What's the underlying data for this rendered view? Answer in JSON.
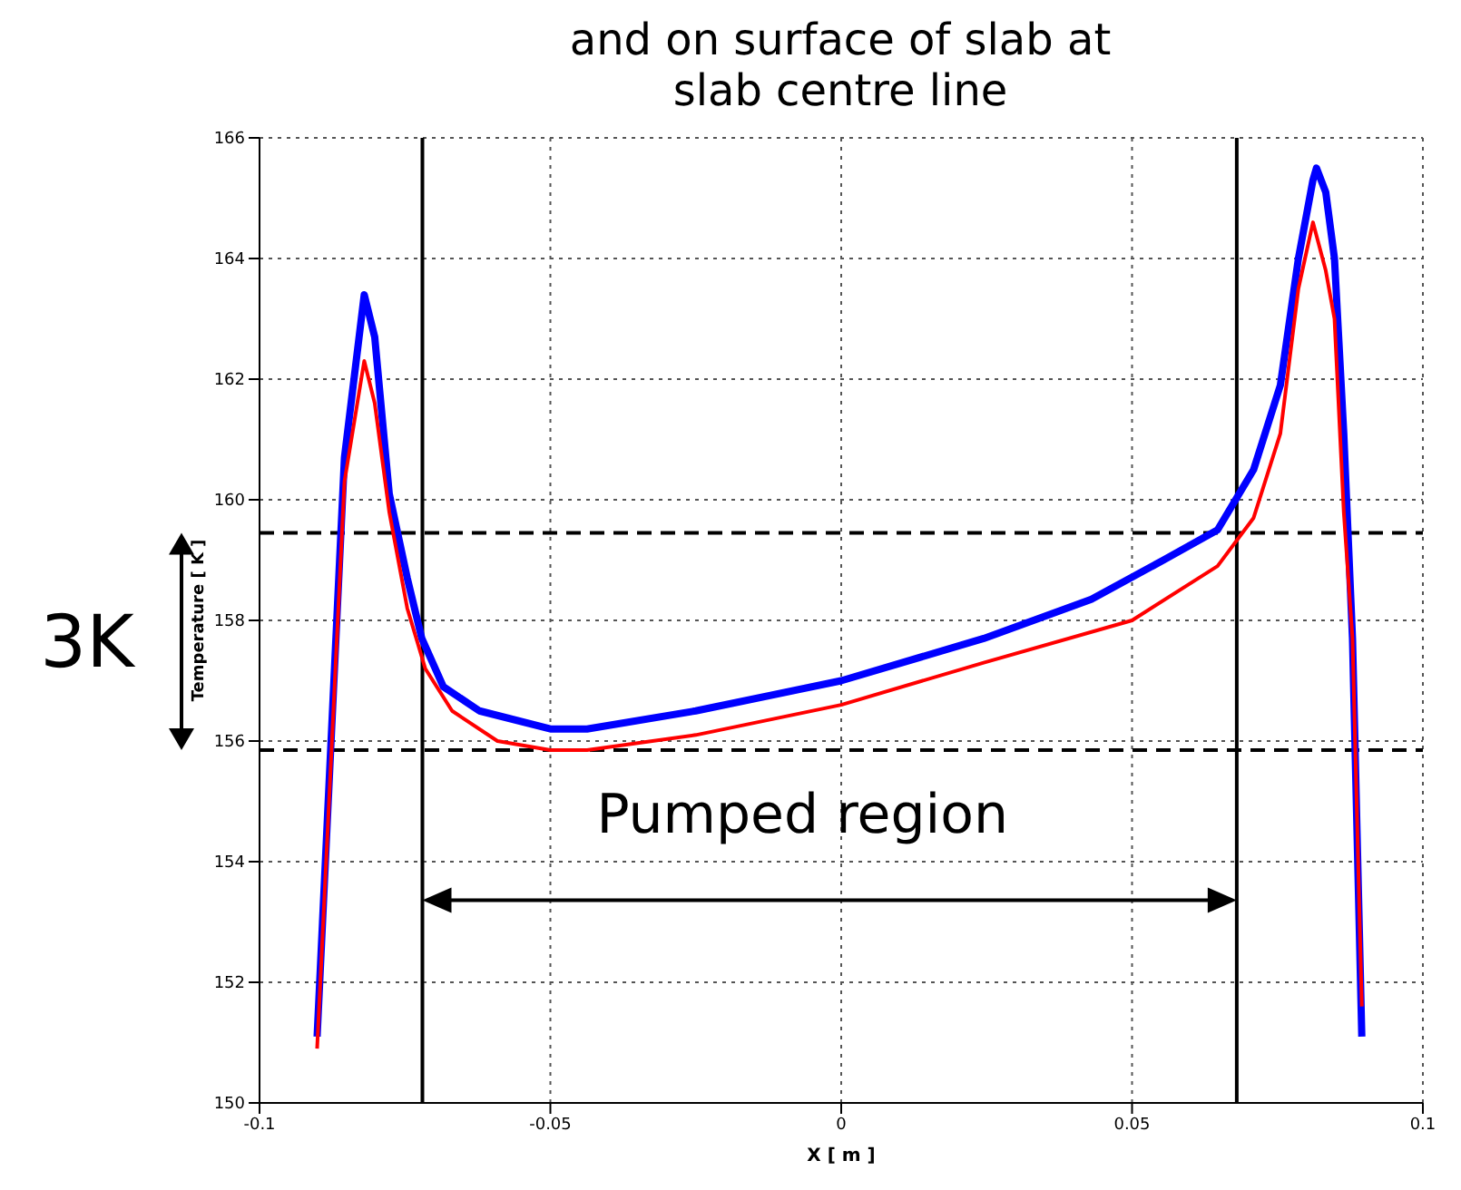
{
  "chart_data": {
    "type": "line",
    "title": "and on surface of slab at slab centre line",
    "xlabel": "X [ m ]",
    "ylabel": "Temperature [ K ]",
    "xlim": [
      -0.1,
      0.1
    ],
    "xticks": [
      -0.1,
      -0.05,
      0,
      0.05,
      0.1
    ],
    "ylim": [
      150,
      166
    ],
    "yticks": [
      150,
      152,
      154,
      156,
      158,
      160,
      162,
      164,
      166
    ],
    "grid": true,
    "legend": false,
    "marker": "none",
    "line_style": "solid",
    "series": [
      {
        "color": "#0000ff",
        "x": [
          -0.0901,
          -0.0854,
          -0.082,
          -0.0802,
          -0.0777,
          -0.0746,
          -0.0721,
          -0.0684,
          -0.0622,
          -0.05,
          -0.0437,
          -0.025,
          0,
          0.0245,
          0.043,
          0.0554,
          0.0647,
          0.0709,
          0.0755,
          0.0786,
          0.0811,
          0.0817,
          0.0833,
          0.0848,
          0.0864,
          0.0879,
          0.0895
        ],
        "values": [
          151.1,
          160.7,
          163.4,
          162.7,
          160.1,
          158.7,
          157.7,
          156.9,
          156.5,
          156.2,
          156.2,
          156.5,
          157.0,
          157.7,
          158.35,
          159.0,
          159.5,
          160.5,
          161.9,
          164.0,
          165.3,
          165.5,
          165.1,
          164.0,
          161.1,
          157.7,
          151.1
        ]
      },
      {
        "color": "#ff0000",
        "x": [
          -0.0901,
          -0.0854,
          -0.082,
          -0.0802,
          -0.0777,
          -0.0746,
          -0.0715,
          -0.0669,
          -0.0591,
          -0.05,
          -0.0437,
          -0.025,
          0,
          0.0245,
          0.05,
          0.0647,
          0.0709,
          0.0755,
          0.0786,
          0.0811,
          0.0833,
          0.0848,
          0.0864,
          0.0879,
          0.0895
        ],
        "values": [
          150.9,
          160.3,
          162.3,
          161.6,
          159.8,
          158.2,
          157.2,
          156.5,
          156.0,
          155.85,
          155.85,
          156.1,
          156.6,
          157.3,
          158.0,
          158.9,
          159.7,
          161.1,
          163.5,
          164.6,
          163.8,
          163.0,
          159.8,
          157.7,
          151.6
        ]
      }
    ],
    "ref_lines": [
      {
        "axis": "y",
        "value": 159.45,
        "color": "#000000",
        "line_style": "dashed"
      },
      {
        "axis": "y",
        "value": 155.85,
        "color": "#000000",
        "line_style": "dashed"
      },
      {
        "axis": "x",
        "value": -0.072,
        "color": "#000000",
        "line_style": "solid"
      },
      {
        "axis": "x",
        "value": 0.068,
        "color": "#000000",
        "line_style": "solid"
      }
    ],
    "annotations": [
      "3K",
      "Pumped region"
    ]
  }
}
